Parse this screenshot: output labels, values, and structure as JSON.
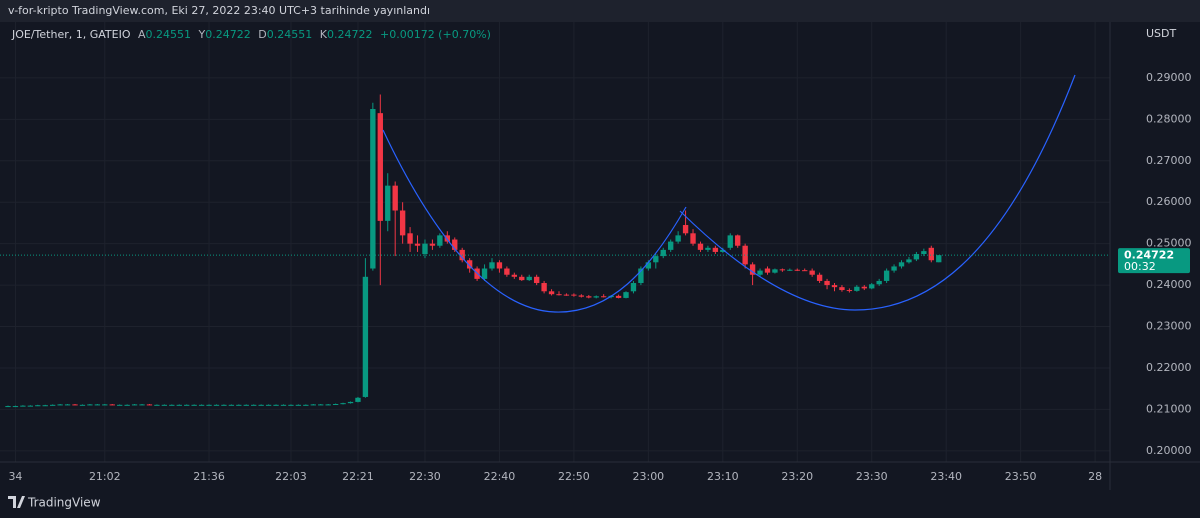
{
  "header": {
    "title": "v-for-kripto TradingView.com, Eki 27, 2022 23:40 UTC+3 tarihinde yayınlandı"
  },
  "footer": {
    "brand": "TradingView"
  },
  "chart_data": {
    "type": "candlestick",
    "legend": {
      "symbol": "JOE/Tether, 1, GATEIO",
      "open_label": "A",
      "open": 0.24551,
      "high_label": "Y",
      "high": 0.24722,
      "low_label": "D",
      "low": 0.24551,
      "close_label": "K",
      "close": 0.24722,
      "change": "+0.00172 (+0.70%)"
    },
    "y_unit": "USDT",
    "last_price": 0.24722,
    "countdown": "00:32",
    "up_color": "#089981",
    "down_color": "#f23645",
    "grid": true,
    "xlim": [
      0,
      148
    ],
    "ylim": [
      0.1973,
      0.3035
    ],
    "xticks": [
      {
        "value": 1,
        "label": "34"
      },
      {
        "value": 13,
        "label": "21:02"
      },
      {
        "value": 27,
        "label": "21:36"
      },
      {
        "value": 38,
        "label": "22:03"
      },
      {
        "value": 47,
        "label": "22:21"
      },
      {
        "value": 56,
        "label": "22:30"
      },
      {
        "value": 66,
        "label": "22:40"
      },
      {
        "value": 76,
        "label": "22:50"
      },
      {
        "value": 86,
        "label": "23:00"
      },
      {
        "value": 96,
        "label": "23:10"
      },
      {
        "value": 106,
        "label": "23:20"
      },
      {
        "value": 116,
        "label": "23:30"
      },
      {
        "value": 126,
        "label": "23:40"
      },
      {
        "value": 136,
        "label": "23:50"
      },
      {
        "value": 146,
        "label": "28"
      }
    ],
    "yticks": [
      {
        "value": 0.2,
        "label": "0.20000"
      },
      {
        "value": 0.21,
        "label": "0.21000"
      },
      {
        "value": 0.22,
        "label": "0.22000"
      },
      {
        "value": 0.23,
        "label": "0.23000"
      },
      {
        "value": 0.24,
        "label": "0.24000"
      },
      {
        "value": 0.25,
        "label": "0.25000"
      },
      {
        "value": 0.26,
        "label": "0.26000"
      },
      {
        "value": 0.27,
        "label": "0.27000"
      },
      {
        "value": 0.28,
        "label": "0.28000"
      },
      {
        "value": 0.29,
        "label": "0.29000"
      }
    ],
    "x": [
      0,
      1,
      2,
      3,
      4,
      5,
      6,
      7,
      8,
      9,
      10,
      11,
      12,
      13,
      14,
      15,
      16,
      17,
      18,
      19,
      20,
      21,
      22,
      23,
      24,
      25,
      26,
      27,
      28,
      29,
      30,
      31,
      32,
      33,
      34,
      35,
      36,
      37,
      38,
      39,
      40,
      41,
      42,
      43,
      44,
      45,
      46,
      47,
      48,
      49,
      50,
      51,
      52,
      53,
      54,
      55,
      56,
      57,
      58,
      59,
      60,
      61,
      62,
      63,
      64,
      65,
      66,
      67,
      68,
      69,
      70,
      71,
      72,
      73,
      74,
      75,
      76,
      77,
      78,
      79,
      80,
      81,
      82,
      83,
      84,
      85,
      86,
      87,
      88,
      89,
      90,
      91,
      92,
      93,
      94,
      95,
      96,
      97,
      98,
      99,
      100,
      101,
      102,
      103,
      104,
      105,
      106,
      107,
      108,
      109,
      110,
      111,
      112,
      113,
      114,
      115,
      116,
      117,
      118,
      119,
      120,
      121,
      122,
      123,
      124,
      125
    ],
    "open": [
      0.2108,
      0.2108,
      0.2108,
      0.2109,
      0.2109,
      0.211,
      0.211,
      0.2111,
      0.2112,
      0.2112,
      0.2111,
      0.2111,
      0.2112,
      0.2112,
      0.2112,
      0.2111,
      0.2111,
      0.2111,
      0.2112,
      0.2112,
      0.2111,
      0.2111,
      0.2111,
      0.2111,
      0.2111,
      0.2111,
      0.2111,
      0.2111,
      0.2111,
      0.2111,
      0.2111,
      0.2111,
      0.2111,
      0.2111,
      0.2111,
      0.2111,
      0.2111,
      0.2111,
      0.2111,
      0.2111,
      0.2111,
      0.2111,
      0.2112,
      0.2112,
      0.2112,
      0.2113,
      0.2115,
      0.2118,
      0.213,
      0.244,
      0.2815,
      0.2555,
      0.264,
      0.258,
      0.2525,
      0.25,
      0.2475,
      0.25,
      0.2495,
      0.252,
      0.251,
      0.2485,
      0.246,
      0.244,
      0.2415,
      0.244,
      0.2455,
      0.244,
      0.2425,
      0.242,
      0.2412,
      0.242,
      0.2405,
      0.2385,
      0.2378,
      0.2377,
      0.2377,
      0.2375,
      0.2373,
      0.237,
      0.2373,
      0.2371,
      0.2374,
      0.2369,
      0.2385,
      0.2405,
      0.244,
      0.2455,
      0.247,
      0.2485,
      0.2505,
      0.2545,
      0.2525,
      0.25,
      0.2485,
      0.249,
      0.248,
      0.249,
      0.252,
      0.2495,
      0.245,
      0.2425,
      0.244,
      0.243,
      0.2438,
      0.2436,
      0.2437,
      0.2436,
      0.2435,
      0.2425,
      0.241,
      0.24,
      0.2395,
      0.2388,
      0.2386,
      0.2396,
      0.2392,
      0.2402,
      0.241,
      0.2435,
      0.2445,
      0.2455,
      0.2462,
      0.2475,
      0.249,
      0.24551
    ],
    "high": [
      0.2109,
      0.2109,
      0.211,
      0.211,
      0.2111,
      0.2111,
      0.2112,
      0.2113,
      0.2113,
      0.2113,
      0.2112,
      0.2113,
      0.2113,
      0.2113,
      0.2113,
      0.2112,
      0.2112,
      0.2113,
      0.2113,
      0.2113,
      0.2112,
      0.2112,
      0.2112,
      0.2112,
      0.2112,
      0.2112,
      0.2112,
      0.2112,
      0.2112,
      0.2112,
      0.2112,
      0.2112,
      0.2112,
      0.2112,
      0.2112,
      0.2112,
      0.2112,
      0.2112,
      0.2112,
      0.2112,
      0.2112,
      0.2113,
      0.2113,
      0.2113,
      0.2114,
      0.2116,
      0.2119,
      0.213,
      0.2465,
      0.284,
      0.286,
      0.267,
      0.265,
      0.26,
      0.254,
      0.252,
      0.251,
      0.251,
      0.2525,
      0.253,
      0.2515,
      0.249,
      0.2465,
      0.2445,
      0.245,
      0.2465,
      0.246,
      0.2445,
      0.243,
      0.2425,
      0.2425,
      0.2425,
      0.241,
      0.239,
      0.2385,
      0.238,
      0.238,
      0.2378,
      0.2376,
      0.2375,
      0.2378,
      0.2376,
      0.2377,
      0.2385,
      0.241,
      0.2445,
      0.246,
      0.2475,
      0.249,
      0.251,
      0.253,
      0.258,
      0.2535,
      0.2505,
      0.2495,
      0.2495,
      0.249,
      0.2525,
      0.2522,
      0.25,
      0.2455,
      0.244,
      0.2445,
      0.244,
      0.244,
      0.244,
      0.244,
      0.244,
      0.244,
      0.243,
      0.2415,
      0.2405,
      0.24,
      0.2392,
      0.24,
      0.24,
      0.2405,
      0.2415,
      0.244,
      0.245,
      0.246,
      0.2468,
      0.248,
      0.2488,
      0.2495,
      0.24722
    ],
    "low": [
      0.2107,
      0.2107,
      0.2107,
      0.2108,
      0.2108,
      0.2109,
      0.2109,
      0.211,
      0.2111,
      0.211,
      0.211,
      0.211,
      0.2111,
      0.2111,
      0.211,
      0.211,
      0.211,
      0.211,
      0.2111,
      0.211,
      0.211,
      0.211,
      0.211,
      0.211,
      0.211,
      0.211,
      0.211,
      0.211,
      0.211,
      0.211,
      0.211,
      0.211,
      0.211,
      0.211,
      0.211,
      0.211,
      0.211,
      0.211,
      0.211,
      0.211,
      0.211,
      0.211,
      0.2111,
      0.2111,
      0.2111,
      0.2112,
      0.2114,
      0.2117,
      0.2128,
      0.2435,
      0.24,
      0.253,
      0.247,
      0.25,
      0.248,
      0.248,
      0.2465,
      0.2485,
      0.249,
      0.25,
      0.248,
      0.2455,
      0.243,
      0.241,
      0.241,
      0.2435,
      0.243,
      0.242,
      0.2415,
      0.241,
      0.241,
      0.24,
      0.238,
      0.2375,
      0.2375,
      0.2374,
      0.2372,
      0.237,
      0.2368,
      0.2368,
      0.237,
      0.2368,
      0.2368,
      0.2368,
      0.238,
      0.24,
      0.2435,
      0.244,
      0.2465,
      0.248,
      0.25,
      0.252,
      0.2495,
      0.248,
      0.248,
      0.2475,
      0.2478,
      0.2485,
      0.249,
      0.244,
      0.24,
      0.242,
      0.2425,
      0.2428,
      0.2432,
      0.2434,
      0.2434,
      0.2434,
      0.242,
      0.2405,
      0.239,
      0.2385,
      0.2384,
      0.2382,
      0.2384,
      0.2388,
      0.239,
      0.2398,
      0.2405,
      0.243,
      0.244,
      0.2452,
      0.2458,
      0.247,
      0.2455,
      0.24551
    ],
    "close": [
      0.2108,
      0.2108,
      0.2109,
      0.2109,
      0.211,
      0.211,
      0.2111,
      0.2112,
      0.2112,
      0.2111,
      0.2111,
      0.2112,
      0.2112,
      0.2112,
      0.2111,
      0.2111,
      0.2111,
      0.2112,
      0.2112,
      0.2111,
      0.2111,
      0.2111,
      0.2111,
      0.2111,
      0.2111,
      0.2111,
      0.2111,
      0.2111,
      0.2111,
      0.2111,
      0.2111,
      0.2111,
      0.2111,
      0.2111,
      0.2111,
      0.2111,
      0.2111,
      0.2111,
      0.2111,
      0.2111,
      0.2111,
      0.2112,
      0.2112,
      0.2112,
      0.2113,
      0.2115,
      0.2118,
      0.2128,
      0.242,
      0.2825,
      0.2555,
      0.264,
      0.258,
      0.252,
      0.25,
      0.2495,
      0.25,
      0.2495,
      0.252,
      0.2505,
      0.2485,
      0.246,
      0.244,
      0.2415,
      0.244,
      0.2455,
      0.244,
      0.2425,
      0.242,
      0.2412,
      0.242,
      0.2405,
      0.2385,
      0.2378,
      0.2376,
      0.2376,
      0.2375,
      0.2372,
      0.237,
      0.2373,
      0.2371,
      0.2374,
      0.2369,
      0.2383,
      0.2405,
      0.244,
      0.2455,
      0.247,
      0.2485,
      0.2505,
      0.252,
      0.2525,
      0.25,
      0.2485,
      0.249,
      0.248,
      0.2485,
      0.252,
      0.2495,
      0.245,
      0.2425,
      0.2435,
      0.243,
      0.2438,
      0.2436,
      0.2437,
      0.2436,
      0.2435,
      0.2425,
      0.241,
      0.24,
      0.2395,
      0.2388,
      0.2386,
      0.2396,
      0.2392,
      0.2402,
      0.241,
      0.2435,
      0.2445,
      0.2455,
      0.2462,
      0.2475,
      0.2482,
      0.246,
      0.24722
    ]
  }
}
